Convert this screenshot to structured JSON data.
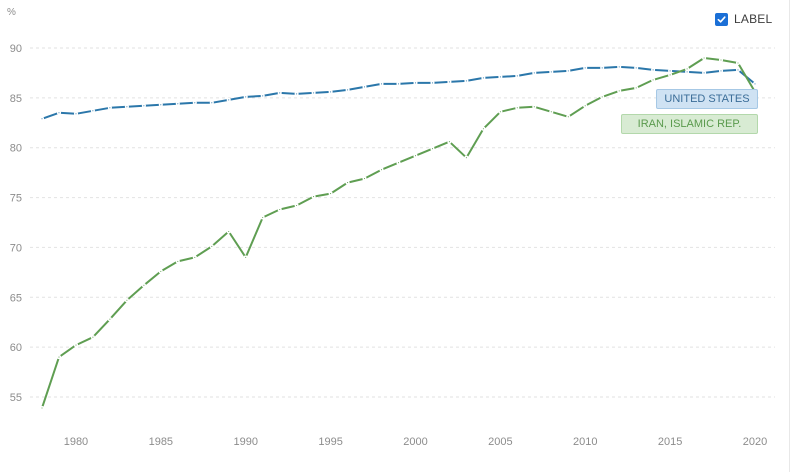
{
  "controls": {
    "label_toggle": {
      "text": "LABEL",
      "checked": true
    }
  },
  "colors": {
    "checkbox": "#1b6fd6",
    "united_states": "#2b77aa",
    "iran": "#5f9e52"
  },
  "chart_data": {
    "type": "line",
    "title": "",
    "xlabel": "",
    "ylabel": "%",
    "grid": true,
    "legend": "inline labels at right end of lines",
    "xlim": [
      1978,
      2020
    ],
    "ylim": [
      53,
      92
    ],
    "x_ticks": [
      1980,
      1985,
      1990,
      1995,
      2000,
      2005,
      2010,
      2015,
      2020
    ],
    "y_ticks": [
      55,
      60,
      65,
      70,
      75,
      80,
      85,
      90
    ],
    "x": [
      1978,
      1979,
      1980,
      1981,
      1982,
      1983,
      1984,
      1985,
      1986,
      1987,
      1988,
      1989,
      1990,
      1991,
      1992,
      1993,
      1994,
      1995,
      1996,
      1997,
      1998,
      1999,
      2000,
      2001,
      2002,
      2003,
      2004,
      2005,
      2006,
      2007,
      2008,
      2009,
      2010,
      2011,
      2012,
      2013,
      2014,
      2015,
      2016,
      2017,
      2018,
      2019,
      2020
    ],
    "series": [
      {
        "name": "UNITED STATES",
        "color": "#2b77aa",
        "values": [
          82.9,
          83.5,
          83.4,
          83.7,
          84.0,
          84.1,
          84.2,
          84.3,
          84.4,
          84.5,
          84.5,
          84.8,
          85.1,
          85.2,
          85.5,
          85.4,
          85.5,
          85.6,
          85.8,
          86.1,
          86.4,
          86.4,
          86.5,
          86.5,
          86.6,
          86.7,
          87.0,
          87.1,
          87.2,
          87.5,
          87.6,
          87.7,
          88.0,
          88.0,
          88.1,
          88.0,
          87.8,
          87.7,
          87.6,
          87.5,
          87.7,
          87.8,
          86.4
        ]
      },
      {
        "name": "IRAN, ISLAMIC REP.",
        "color": "#5f9e52",
        "values": [
          53.9,
          59.0,
          60.2,
          61.0,
          62.8,
          64.7,
          66.2,
          67.6,
          68.6,
          69.0,
          70.1,
          71.6,
          69.0,
          73.0,
          73.8,
          74.2,
          75.1,
          75.4,
          76.5,
          76.9,
          77.8,
          78.5,
          79.2,
          79.9,
          80.6,
          79.0,
          81.9,
          83.6,
          84.0,
          84.1,
          83.6,
          83.1,
          84.2,
          85.1,
          85.7,
          86.0,
          86.8,
          87.3,
          87.9,
          89.0,
          88.8,
          88.5,
          85.6
        ]
      }
    ]
  }
}
